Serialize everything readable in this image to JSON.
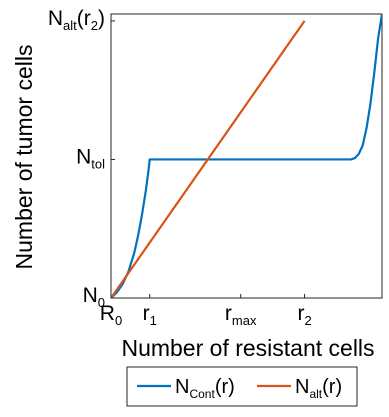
{
  "chart_data": {
    "type": "line",
    "xlabel": "Number of resistant cells",
    "ylabel": "Number of tumor cells",
    "xlim": [
      0,
      7
    ],
    "ylim": [
      0,
      4.1
    ],
    "x_ticks": [
      {
        "value": 0,
        "main": "R",
        "sub": "0"
      },
      {
        "value": 1,
        "main": "r",
        "sub": "1"
      },
      {
        "value": 3.35,
        "main": "r",
        "sub": "max"
      },
      {
        "value": 5,
        "main": "r",
        "sub": "2"
      }
    ],
    "y_ticks": [
      {
        "value": 0,
        "main": "N",
        "sub": "0"
      },
      {
        "value": 2.0,
        "main": "N",
        "sub": "tol"
      },
      {
        "value": 4.0,
        "main": "N",
        "sub": "alt",
        "suffix_open": "(r",
        "suffix_sub": "2",
        "suffix_close": ")"
      }
    ],
    "grid": false,
    "legend_position": "bottom",
    "series": [
      {
        "key": "cont",
        "legend_main": "N",
        "legend_sub": "Cont",
        "legend_suffix": "(r)",
        "color": "#0072BD",
        "x": [
          0,
          0.15,
          0.3,
          0.45,
          0.6,
          0.7,
          0.8,
          0.9,
          0.97,
          1.0,
          2.0,
          3.0,
          4.0,
          5.0,
          6.0,
          6.2,
          6.3,
          6.4,
          6.5,
          6.6,
          6.7,
          6.8,
          6.9,
          7.0
        ],
        "y": [
          0,
          0.08,
          0.2,
          0.38,
          0.65,
          0.9,
          1.2,
          1.55,
          1.85,
          2.0,
          2.0,
          2.0,
          2.0,
          2.0,
          2.0,
          2.0,
          2.02,
          2.08,
          2.2,
          2.45,
          2.8,
          3.25,
          3.75,
          4.1
        ]
      },
      {
        "key": "alt",
        "legend_main": "N",
        "legend_sub": "alt",
        "legend_suffix": "(r)",
        "color": "#D95319",
        "x": [
          0,
          5
        ],
        "y": [
          0,
          4.0
        ]
      }
    ]
  }
}
